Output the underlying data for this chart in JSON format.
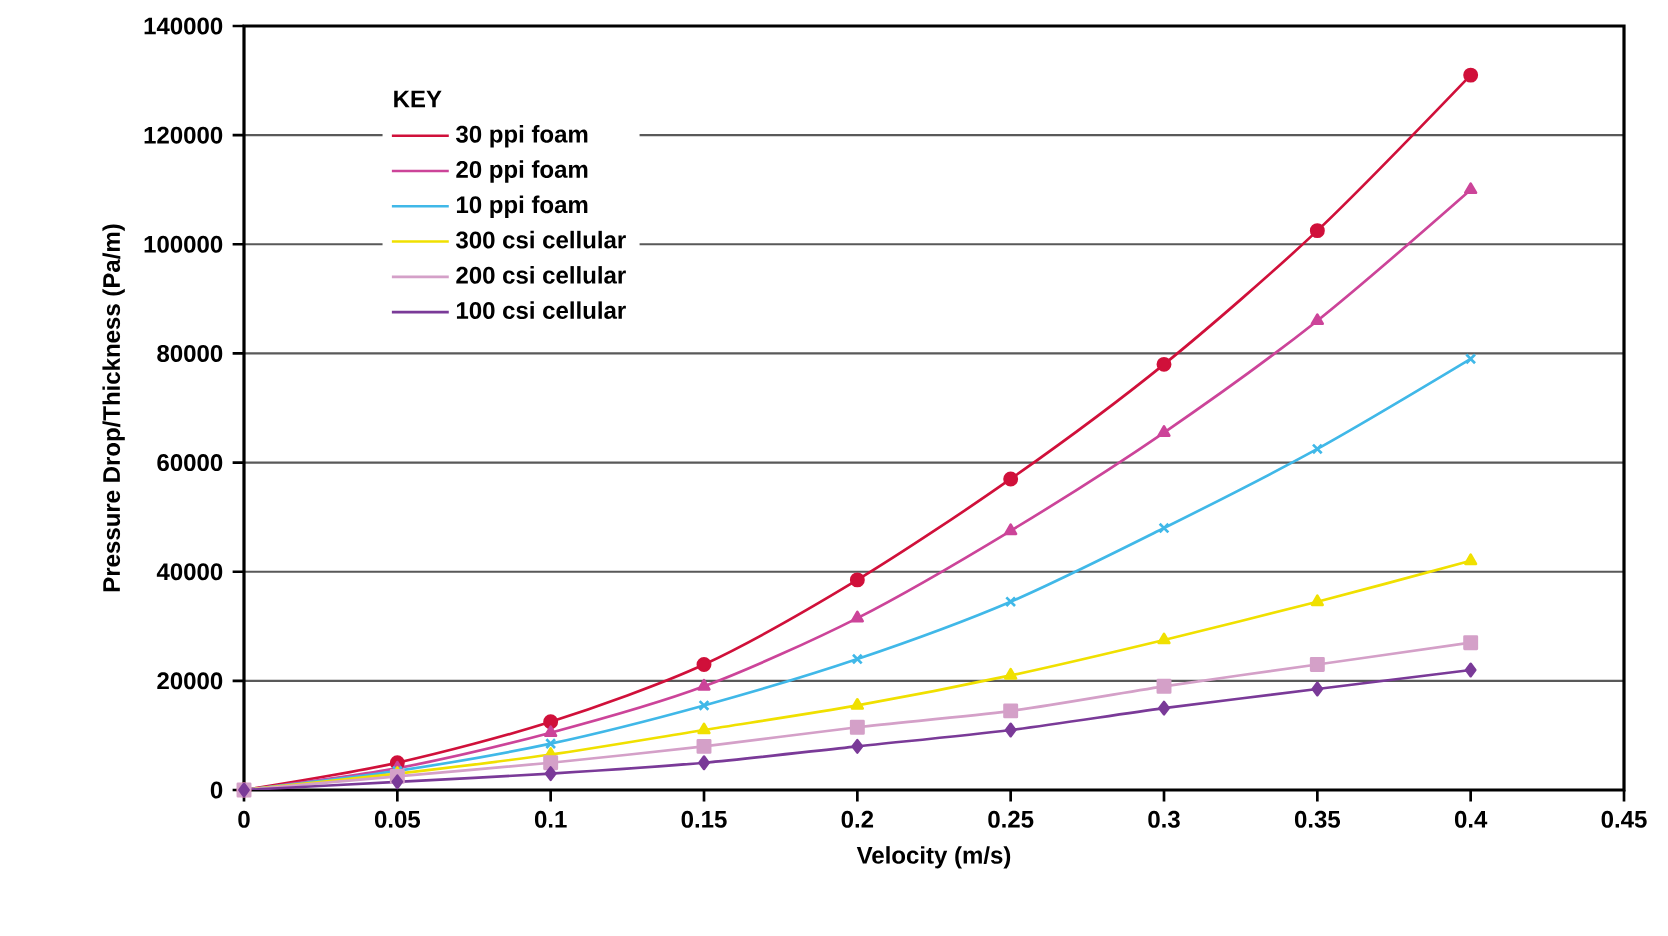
{
  "chart_data": {
    "type": "line",
    "xlabel": "Velocity (m/s)",
    "ylabel": "Pressure Drop/Thickness (Pa/m)",
    "legend_title": "KEY",
    "x": [
      0,
      0.05,
      0.1,
      0.15,
      0.2,
      0.25,
      0.3,
      0.35,
      0.4
    ],
    "series": [
      {
        "name": "30 ppi foam",
        "color": "#d0103a",
        "marker": "circle",
        "values": [
          0,
          5000,
          12500,
          23000,
          38500,
          57000,
          78000,
          102500,
          131000
        ]
      },
      {
        "name": "20 ppi foam",
        "color": "#cc4499",
        "marker": "triangle",
        "values": [
          0,
          4000,
          10500,
          19000,
          31500,
          47500,
          65500,
          86000,
          110000
        ]
      },
      {
        "name": "10 ppi foam",
        "color": "#40b8e8",
        "marker": "cross",
        "values": [
          0,
          3500,
          8500,
          15500,
          24000,
          34500,
          48000,
          62500,
          79000
        ]
      },
      {
        "name": "300 csi cellular",
        "color": "#f0e000",
        "marker": "triangle",
        "values": [
          0,
          3000,
          6500,
          11000,
          15500,
          21000,
          27500,
          34500,
          42000
        ]
      },
      {
        "name": "200 csi cellular",
        "color": "#d4a0c8",
        "marker": "square",
        "values": [
          0,
          2500,
          5000,
          8000,
          11500,
          14500,
          19000,
          23000,
          27000
        ]
      },
      {
        "name": "100 csi cellular",
        "color": "#7a3a98",
        "marker": "diamond",
        "values": [
          0,
          1500,
          3000,
          5000,
          8000,
          11000,
          15000,
          18500,
          22000
        ]
      }
    ],
    "xlim": [
      0,
      0.45
    ],
    "xticks": [
      0,
      0.05,
      0.1,
      0.15,
      0.2,
      0.25,
      0.3,
      0.35,
      0.4,
      0.45
    ],
    "ylim": [
      0,
      140000
    ],
    "yticks": [
      0,
      20000,
      40000,
      60000,
      80000,
      100000,
      120000,
      140000
    ],
    "grid": "y",
    "legend": "top left"
  }
}
